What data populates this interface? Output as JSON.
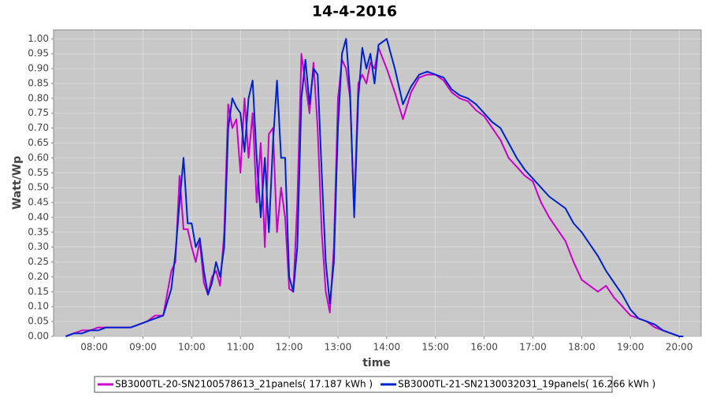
{
  "chart_data": {
    "type": "line",
    "title": "14-4-2016",
    "x_label": "time",
    "y_label": "Watt/Wp",
    "x": [
      "07:25",
      "07:35",
      "07:45",
      "07:55",
      "08:05",
      "08:15",
      "08:25",
      "08:35",
      "08:45",
      "08:55",
      "09:05",
      "09:15",
      "09:25",
      "09:35",
      "09:40",
      "09:45",
      "09:50",
      "09:55",
      "10:00",
      "10:05",
      "10:10",
      "10:15",
      "10:20",
      "10:25",
      "10:30",
      "10:35",
      "10:40",
      "10:45",
      "10:50",
      "10:55",
      "11:00",
      "11:05",
      "11:10",
      "11:15",
      "11:20",
      "11:25",
      "11:30",
      "11:35",
      "11:40",
      "11:45",
      "11:50",
      "11:55",
      "12:00",
      "12:05",
      "12:10",
      "12:15",
      "12:20",
      "12:25",
      "12:30",
      "12:35",
      "12:40",
      "12:45",
      "12:50",
      "12:55",
      "13:00",
      "13:05",
      "13:10",
      "13:15",
      "13:20",
      "13:25",
      "13:30",
      "13:35",
      "13:40",
      "13:45",
      "13:50",
      "14:00",
      "14:10",
      "14:20",
      "14:30",
      "14:40",
      "14:50",
      "15:00",
      "15:10",
      "15:20",
      "15:30",
      "15:40",
      "15:50",
      "16:00",
      "16:10",
      "16:20",
      "16:30",
      "16:40",
      "16:50",
      "17:00",
      "17:10",
      "17:20",
      "17:30",
      "17:40",
      "17:50",
      "18:00",
      "18:10",
      "18:20",
      "18:30",
      "18:40",
      "18:50",
      "19:00",
      "19:10",
      "19:20",
      "19:30",
      "19:40",
      "19:50",
      "20:00",
      "20:05"
    ],
    "series": [
      {
        "name": "SB3000TL-20-SN2100578613_21panels( 17.187 kWh )",
        "color": "#cc00cc",
        "values": [
          0.0,
          0.01,
          0.02,
          0.02,
          0.03,
          0.03,
          0.03,
          0.03,
          0.03,
          0.04,
          0.05,
          0.07,
          0.07,
          0.22,
          0.25,
          0.54,
          0.36,
          0.36,
          0.3,
          0.25,
          0.32,
          0.18,
          0.14,
          0.2,
          0.22,
          0.17,
          0.35,
          0.78,
          0.7,
          0.73,
          0.55,
          0.8,
          0.6,
          0.75,
          0.45,
          0.65,
          0.3,
          0.68,
          0.7,
          0.35,
          0.5,
          0.4,
          0.16,
          0.15,
          0.45,
          0.95,
          0.85,
          0.75,
          0.92,
          0.7,
          0.35,
          0.15,
          0.08,
          0.3,
          0.8,
          0.93,
          0.9,
          0.8,
          0.42,
          0.85,
          0.88,
          0.85,
          0.92,
          0.9,
          0.97,
          0.9,
          0.82,
          0.73,
          0.82,
          0.87,
          0.88,
          0.88,
          0.86,
          0.82,
          0.8,
          0.79,
          0.76,
          0.74,
          0.7,
          0.66,
          0.6,
          0.57,
          0.54,
          0.52,
          0.45,
          0.4,
          0.36,
          0.32,
          0.25,
          0.19,
          0.17,
          0.15,
          0.17,
          0.13,
          0.1,
          0.07,
          0.06,
          0.05,
          0.03,
          0.02,
          0.01,
          0.0,
          0.0
        ]
      },
      {
        "name": "SB3000TL-21-SN2130032031_19panels( 16.266 kWh )",
        "color": "#0022cc",
        "values": [
          0.0,
          0.01,
          0.01,
          0.02,
          0.02,
          0.03,
          0.03,
          0.03,
          0.03,
          0.04,
          0.05,
          0.06,
          0.07,
          0.16,
          0.28,
          0.45,
          0.6,
          0.38,
          0.38,
          0.3,
          0.33,
          0.22,
          0.14,
          0.18,
          0.25,
          0.2,
          0.3,
          0.7,
          0.8,
          0.77,
          0.75,
          0.62,
          0.8,
          0.86,
          0.6,
          0.4,
          0.6,
          0.35,
          0.65,
          0.86,
          0.6,
          0.6,
          0.2,
          0.15,
          0.3,
          0.8,
          0.93,
          0.78,
          0.9,
          0.88,
          0.55,
          0.25,
          0.11,
          0.25,
          0.7,
          0.95,
          1.0,
          0.82,
          0.4,
          0.8,
          0.97,
          0.9,
          0.95,
          0.85,
          0.98,
          1.0,
          0.9,
          0.78,
          0.84,
          0.88,
          0.89,
          0.88,
          0.87,
          0.83,
          0.81,
          0.8,
          0.78,
          0.75,
          0.72,
          0.7,
          0.65,
          0.6,
          0.56,
          0.53,
          0.5,
          0.47,
          0.45,
          0.43,
          0.38,
          0.35,
          0.31,
          0.27,
          0.22,
          0.18,
          0.14,
          0.09,
          0.06,
          0.05,
          0.04,
          0.02,
          0.01,
          0.0,
          0.0
        ]
      }
    ],
    "xlim": [
      "07:10",
      "20:27"
    ],
    "xticks": [
      "08:00",
      "09:00",
      "10:00",
      "11:00",
      "12:00",
      "13:00",
      "14:00",
      "15:00",
      "16:00",
      "17:00",
      "18:00",
      "19:00",
      "20:00"
    ],
    "ylim": [
      0,
      1.03
    ],
    "yticks": [
      {
        "value": 0,
        "label": "0.00"
      },
      {
        "value": 0.05,
        "label": "0.05"
      },
      {
        "value": 0.1,
        "label": "0.10"
      },
      {
        "value": 0.15,
        "label": "0.15"
      },
      {
        "value": 0.2,
        "label": "0.20"
      },
      {
        "value": 0.25,
        "label": "0.25"
      },
      {
        "value": 0.3,
        "label": "0.30"
      },
      {
        "value": 0.35,
        "label": "0.35"
      },
      {
        "value": 0.4,
        "label": "0.40"
      },
      {
        "value": 0.45,
        "label": "0.45"
      },
      {
        "value": 0.5,
        "label": "0.50"
      },
      {
        "value": 0.55,
        "label": "0.55"
      },
      {
        "value": 0.6,
        "label": "0.60"
      },
      {
        "value": 0.65,
        "label": "0.65"
      },
      {
        "value": 0.7,
        "label": "0.70"
      },
      {
        "value": 0.75,
        "label": "0.75"
      },
      {
        "value": 0.8,
        "label": "0.80"
      },
      {
        "value": 0.85,
        "label": "0.85"
      },
      {
        "value": 0.9,
        "label": "0.90"
      },
      {
        "value": 0.95,
        "label": "0.95"
      },
      {
        "value": 1,
        "label": "1.00"
      }
    ],
    "grid": true,
    "legend": "bottom"
  }
}
